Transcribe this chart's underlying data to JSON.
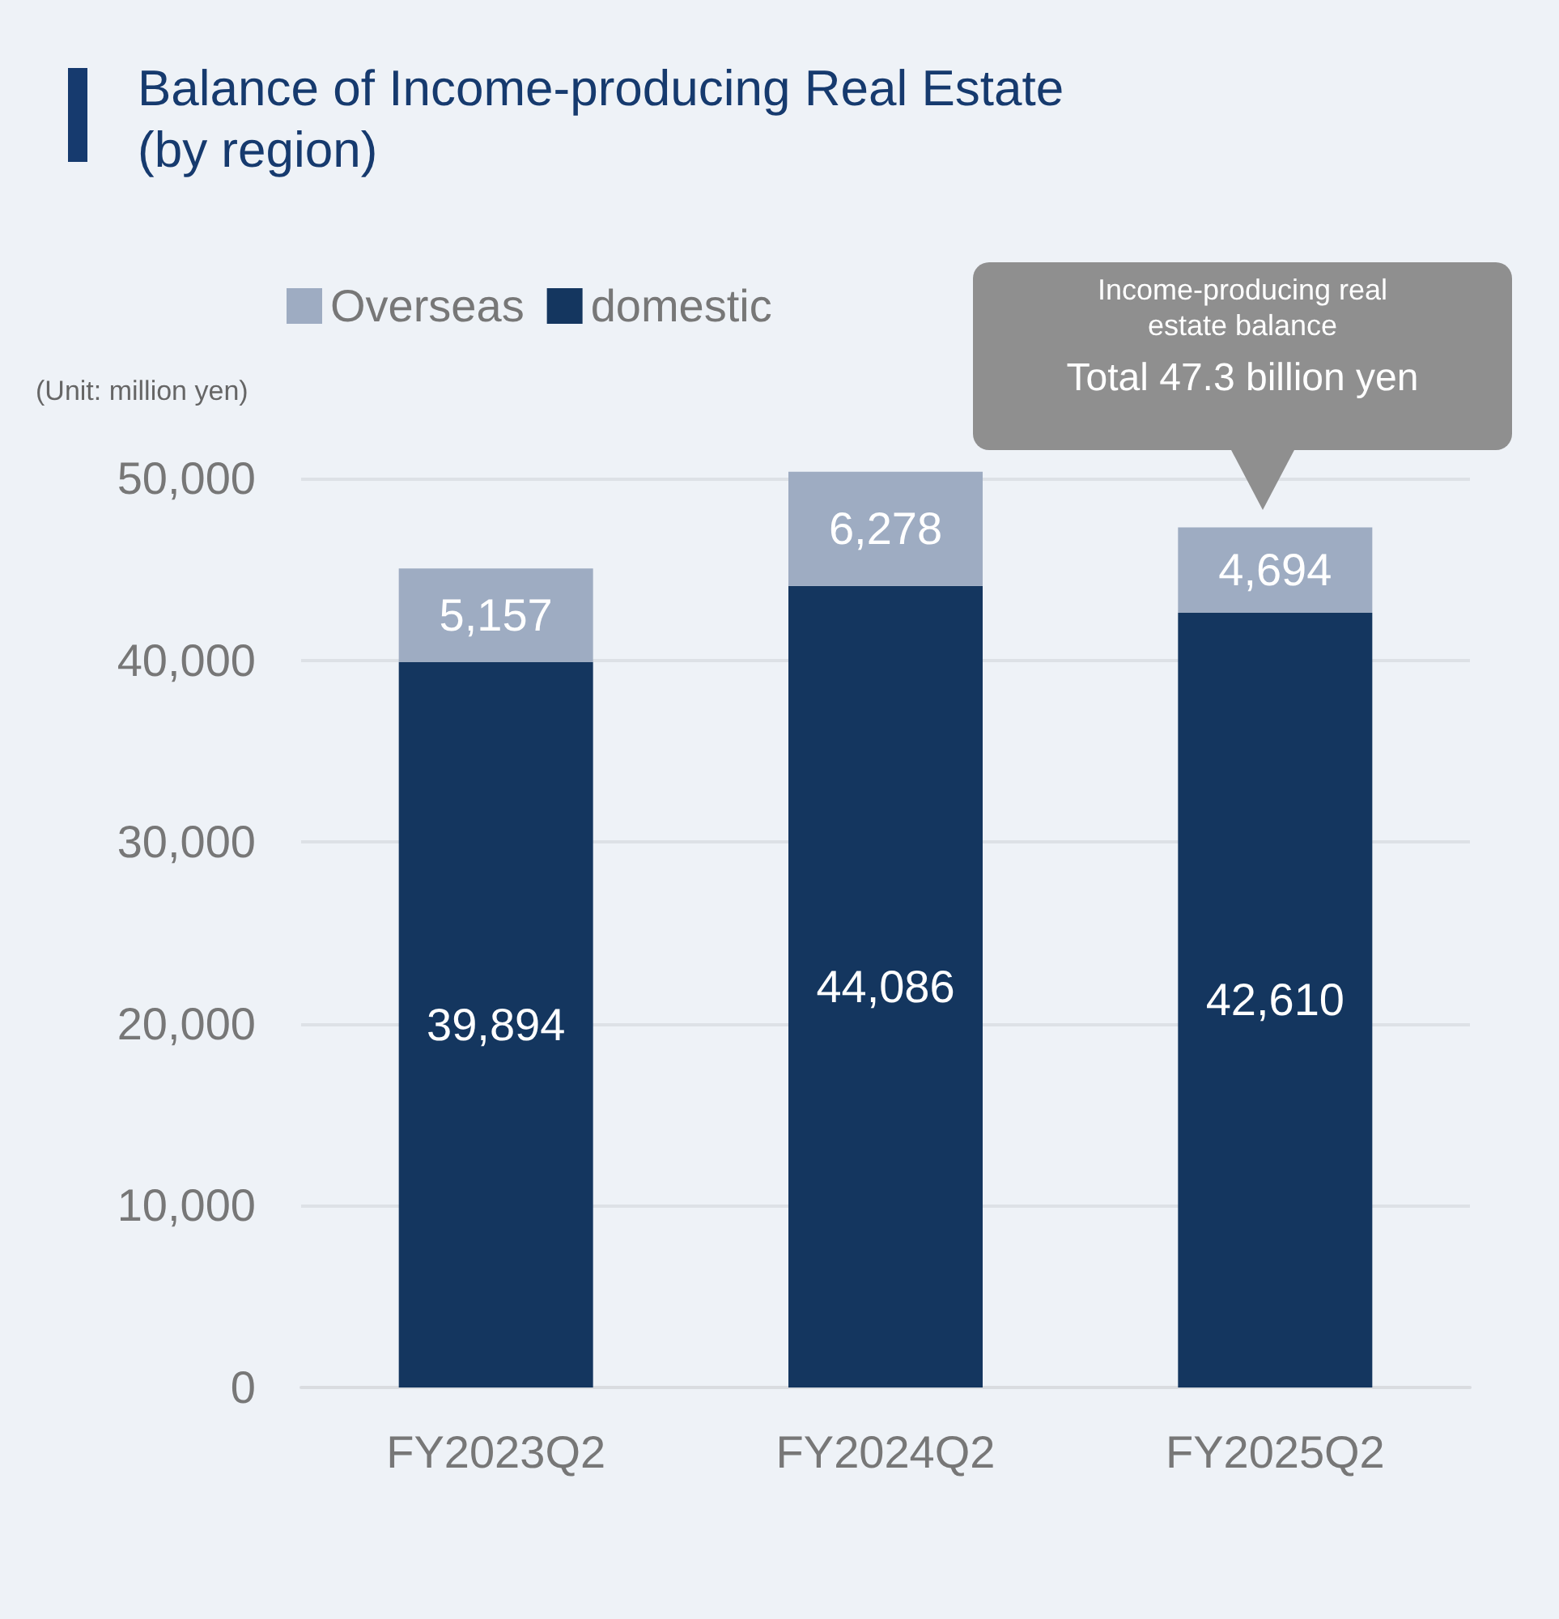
{
  "chart_data": {
    "type": "bar",
    "title": "Balance of Income-producing Real Estate\n(by region)",
    "categories": [
      "FY2023Q2",
      "FY2024Q2",
      "FY2025Q2"
    ],
    "stacked": true,
    "series": [
      {
        "name": "domestic",
        "color": "#14365f",
        "values": [
          39894,
          44086,
          42610
        ],
        "value_labels": [
          "39,894",
          "44,086",
          "42,610"
        ]
      },
      {
        "name": "Overseas",
        "color": "#9eacc2",
        "values": [
          5157,
          6278,
          4694
        ],
        "value_labels": [
          "5,157",
          "6,278",
          "4,694"
        ]
      }
    ],
    "ylim": [
      0,
      50400
    ],
    "yticks": [
      0,
      {
        "value": 10000,
        "label": "10,000"
      },
      {
        "value": 20000,
        "label": "20,000"
      },
      {
        "value": 30000,
        "label": "30,000"
      },
      {
        "value": 40000,
        "label": "40,000"
      },
      {
        "value": 50000,
        "label": "50,000"
      }
    ],
    "grid": "y",
    "legend": "top left",
    "annotations": [
      "(Unit: million yen)",
      "Income-producing real estate balance",
      "Total 47.3 billion yen"
    ]
  }
}
